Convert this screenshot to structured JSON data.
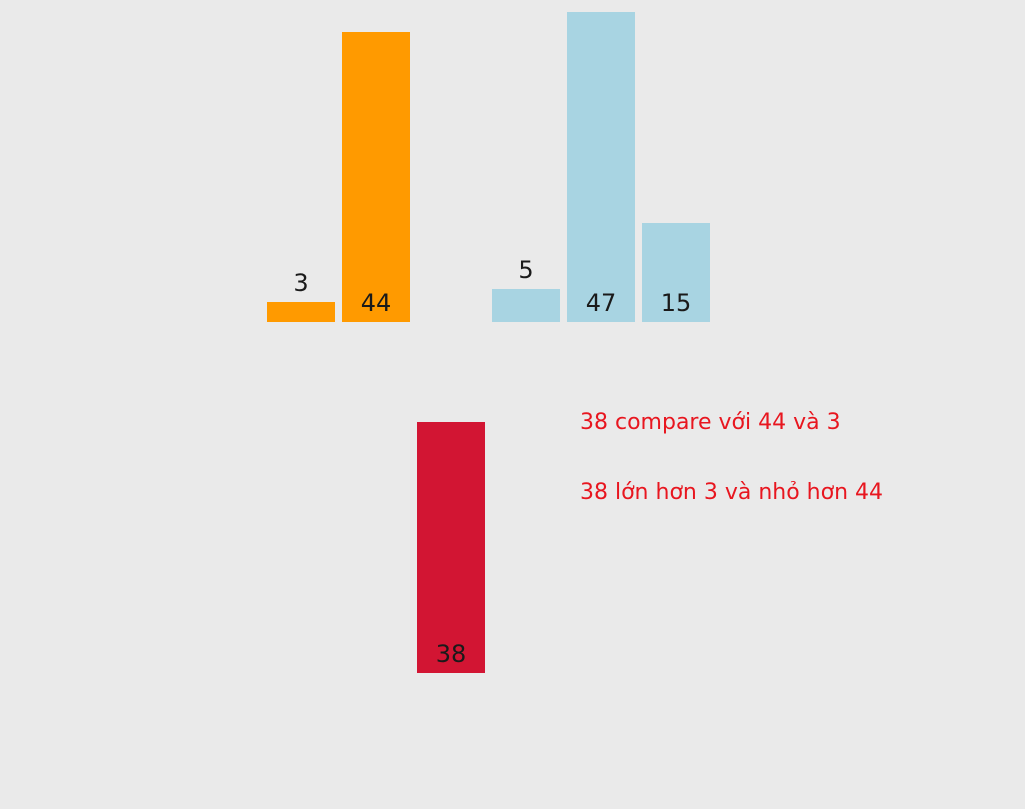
{
  "colors": {
    "background": "#eaeaea",
    "sorted_group": "#ff9a00",
    "unsorted_group": "#a8d4e2",
    "current_element": "#d21533",
    "note_text": "#e8161f"
  },
  "groups": {
    "sorted": [
      {
        "value": 3
      },
      {
        "value": 44
      }
    ],
    "unsorted": [
      {
        "value": 5
      },
      {
        "value": 47
      },
      {
        "value": 15
      }
    ],
    "current": {
      "value": 38
    }
  },
  "labels": {
    "sorted_0": "3",
    "sorted_1": "44",
    "unsorted_0": "5",
    "unsorted_1": "47",
    "unsorted_2": "15",
    "current": "38"
  },
  "notes": {
    "line1": "38 compare với 44 và 3",
    "line2": "38 lớn hơn 3 và nhỏ hơn 44"
  }
}
